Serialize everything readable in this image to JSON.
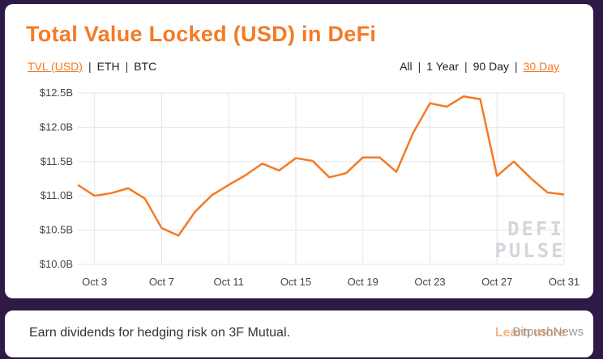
{
  "header": {
    "title": "Total Value Locked (USD) in DeFi"
  },
  "metric_toggle": {
    "options": [
      "TVL (USD)",
      "ETH",
      "BTC"
    ],
    "active": "TVL (USD)"
  },
  "range_toggle": {
    "options": [
      "All",
      "1 Year",
      "90 Day",
      "30 Day"
    ],
    "active": "30 Day"
  },
  "watermark": {
    "line1": "DEFI",
    "line2": "PULSE"
  },
  "banner": {
    "text": "Earn dividends for hedging risk on 3F Mutual.",
    "link": "Learn more",
    "watermark_text": "BitpushNews"
  },
  "colors": {
    "accent": "#f47a25",
    "background": "#2e1a47",
    "grid": "#e6e6e6"
  },
  "chart_data": {
    "type": "line",
    "title": "Total Value Locked (USD) in DeFi",
    "xlabel": "",
    "ylabel": "",
    "x_ticks": [
      "Oct 3",
      "Oct 7",
      "Oct 11",
      "Oct 15",
      "Oct 19",
      "Oct 23",
      "Oct 27",
      "Oct 31"
    ],
    "y_ticks": [
      "$10.0B",
      "$10.5B",
      "$11.0B",
      "$11.5B",
      "$12.0B",
      "$12.5B"
    ],
    "ylim": [
      10.0,
      12.5
    ],
    "xlim": [
      2,
      31
    ],
    "grid": true,
    "series": [
      {
        "name": "TVL (USD)",
        "x": [
          2,
          3,
          4,
          5,
          6,
          7,
          8,
          9,
          10,
          11,
          12,
          13,
          14,
          15,
          16,
          17,
          18,
          19,
          20,
          21,
          22,
          23,
          24,
          25,
          26,
          27,
          28,
          29,
          30,
          31
        ],
        "values": [
          11.16,
          11.0,
          11.04,
          11.11,
          10.96,
          10.53,
          10.42,
          10.77,
          11.01,
          11.16,
          11.3,
          11.47,
          11.37,
          11.55,
          11.51,
          11.27,
          11.33,
          11.56,
          11.56,
          11.35,
          11.92,
          12.35,
          12.3,
          12.45,
          12.41,
          11.29,
          11.5,
          11.26,
          11.05,
          11.02
        ]
      }
    ]
  }
}
